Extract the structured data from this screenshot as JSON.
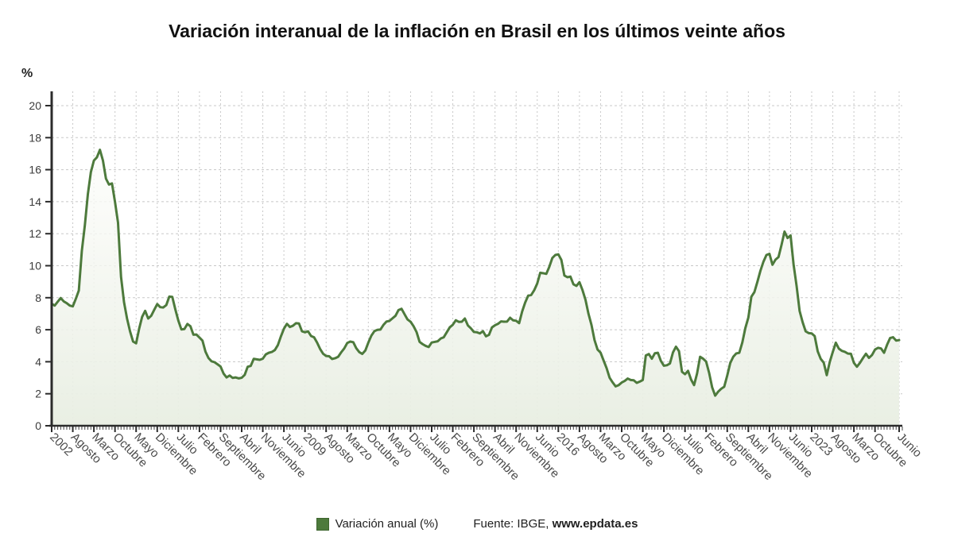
{
  "title": "Variación interanual de la inflación en Brasil en los últimos veinte años",
  "y_axis": {
    "unit": "%"
  },
  "legend": {
    "label": "Variación anual (%)",
    "color": "#4d7a3c"
  },
  "source": {
    "prefix": "Fuente: IBGE, ",
    "link": "www.epdata.es"
  },
  "chart_data": {
    "type": "area",
    "series_name": "Variación anual (%)",
    "x_unit": "month",
    "start": "2002-01",
    "end": "2025-06",
    "n_points": 282,
    "ylim": [
      0,
      20
    ],
    "y_ticks": [
      0,
      2,
      4,
      6,
      8,
      10,
      12,
      14,
      16,
      18,
      20
    ],
    "grid": true,
    "legend_position": "bottom",
    "line_color": "#4d7a3c",
    "fill_top_color": "#fdfdfb",
    "fill_bottom_color": "#e8eee2",
    "grid_color": "#c8c8c8",
    "axis_color": "#2b2b2b",
    "x_tick_labels": [
      {
        "i": 0,
        "label": "2002"
      },
      {
        "i": 7,
        "label": "Agosto"
      },
      {
        "i": 14,
        "label": "Marzo"
      },
      {
        "i": 21,
        "label": "Octubre"
      },
      {
        "i": 28,
        "label": "Mayo"
      },
      {
        "i": 35,
        "label": "Diciembre"
      },
      {
        "i": 42,
        "label": "Julio"
      },
      {
        "i": 49,
        "label": "Febrero"
      },
      {
        "i": 56,
        "label": "Septiembre"
      },
      {
        "i": 63,
        "label": "Abril"
      },
      {
        "i": 70,
        "label": "Noviembre"
      },
      {
        "i": 77,
        "label": "Junio"
      },
      {
        "i": 84,
        "label": "2009"
      },
      {
        "i": 91,
        "label": "Agosto"
      },
      {
        "i": 98,
        "label": "Marzo"
      },
      {
        "i": 105,
        "label": "Octubre"
      },
      {
        "i": 112,
        "label": "Mayo"
      },
      {
        "i": 119,
        "label": "Diciembre"
      },
      {
        "i": 126,
        "label": "Julio"
      },
      {
        "i": 133,
        "label": "Febrero"
      },
      {
        "i": 140,
        "label": "Septiembre"
      },
      {
        "i": 147,
        "label": "Abril"
      },
      {
        "i": 154,
        "label": "Noviembre"
      },
      {
        "i": 161,
        "label": "Junio"
      },
      {
        "i": 168,
        "label": "2016"
      },
      {
        "i": 175,
        "label": "Agosto"
      },
      {
        "i": 182,
        "label": "Marzo"
      },
      {
        "i": 189,
        "label": "Octubre"
      },
      {
        "i": 196,
        "label": "Mayo"
      },
      {
        "i": 203,
        "label": "Diciembre"
      },
      {
        "i": 210,
        "label": "Julio"
      },
      {
        "i": 217,
        "label": "Febrero"
      },
      {
        "i": 224,
        "label": "Septiembre"
      },
      {
        "i": 231,
        "label": "Abril"
      },
      {
        "i": 238,
        "label": "Noviembre"
      },
      {
        "i": 245,
        "label": "Junio"
      },
      {
        "i": 252,
        "label": "2023"
      },
      {
        "i": 259,
        "label": "Agosto"
      },
      {
        "i": 266,
        "label": "Marzo"
      },
      {
        "i": 273,
        "label": "Octubre"
      },
      {
        "i": 281,
        "label": "Junio"
      }
    ],
    "values": [
      7.62,
      7.51,
      7.75,
      7.98,
      7.77,
      7.66,
      7.51,
      7.46,
      7.93,
      8.45,
      10.93,
      12.53,
      14.47,
      15.85,
      16.57,
      16.77,
      17.24,
      16.57,
      15.44,
      15.07,
      15.14,
      13.98,
      12.69,
      9.3,
      7.71,
      6.69,
      5.89,
      5.26,
      5.15,
      6.06,
      6.81,
      7.18,
      6.7,
      6.87,
      7.24,
      7.6,
      7.41,
      7.39,
      7.54,
      8.07,
      8.05,
      7.27,
      6.57,
      6.02,
      6.04,
      6.36,
      6.22,
      5.69,
      5.7,
      5.51,
      5.32,
      4.63,
      4.23,
      4.03,
      3.97,
      3.84,
      3.7,
      3.26,
      3.02,
      3.14,
      2.99,
      3.02,
      2.96,
      3.0,
      3.18,
      3.69,
      3.74,
      4.18,
      4.15,
      4.12,
      4.19,
      4.46,
      4.56,
      4.61,
      4.73,
      5.04,
      5.58,
      6.06,
      6.37,
      6.17,
      6.25,
      6.41,
      6.39,
      5.9,
      5.84,
      5.9,
      5.61,
      5.53,
      5.2,
      4.8,
      4.5,
      4.36,
      4.34,
      4.17,
      4.22,
      4.31,
      4.59,
      4.83,
      5.17,
      5.26,
      5.22,
      4.84,
      4.6,
      4.49,
      4.7,
      5.2,
      5.63,
      5.91,
      5.99,
      6.01,
      6.3,
      6.51,
      6.55,
      6.71,
      6.87,
      7.23,
      7.31,
      6.97,
      6.64,
      6.5,
      6.22,
      5.85,
      5.24,
      5.1,
      4.99,
      4.92,
      5.2,
      5.24,
      5.28,
      5.45,
      5.53,
      5.84,
      6.15,
      6.31,
      6.59,
      6.49,
      6.5,
      6.7,
      6.27,
      6.09,
      5.86,
      5.84,
      5.77,
      5.91,
      5.59,
      5.68,
      6.15,
      6.28,
      6.37,
      6.52,
      6.5,
      6.51,
      6.75,
      6.59,
      6.56,
      6.41,
      7.14,
      7.7,
      8.13,
      8.17,
      8.47,
      8.89,
      9.56,
      9.53,
      9.49,
      9.93,
      10.48,
      10.67,
      10.71,
      10.36,
      9.39,
      9.28,
      9.32,
      8.84,
      8.74,
      8.97,
      8.48,
      7.87,
      6.99,
      6.29,
      5.35,
      4.76,
      4.57,
      4.08,
      3.6,
      3.0,
      2.71,
      2.46,
      2.54,
      2.7,
      2.8,
      2.95,
      2.86,
      2.84,
      2.68,
      2.76,
      2.86,
      4.39,
      4.48,
      4.19,
      4.53,
      4.56,
      4.05,
      3.75,
      3.78,
      3.89,
      4.58,
      4.94,
      4.66,
      3.37,
      3.22,
      3.43,
      2.89,
      2.54,
      3.27,
      4.31,
      4.19,
      4.01,
      3.3,
      2.4,
      1.88,
      2.13,
      2.31,
      2.44,
      3.14,
      3.92,
      4.31,
      4.52,
      4.56,
      5.2,
      6.1,
      6.76,
      8.06,
      8.35,
      8.99,
      9.68,
      10.25,
      10.67,
      10.74,
      10.06,
      10.38,
      10.54,
      11.3,
      12.13,
      11.73,
      11.89,
      10.07,
      8.73,
      7.17,
      6.47,
      5.9,
      5.79,
      5.77,
      5.6,
      4.65,
      4.18,
      3.94,
      3.16,
      3.99,
      4.61,
      5.19,
      4.82,
      4.68,
      4.62,
      4.51,
      4.5,
      3.93,
      3.69,
      3.93,
      4.23,
      4.5,
      4.24,
      4.42,
      4.76,
      4.87,
      4.83,
      4.56,
      5.06,
      5.48,
      5.53,
      5.32,
      5.35
    ]
  }
}
